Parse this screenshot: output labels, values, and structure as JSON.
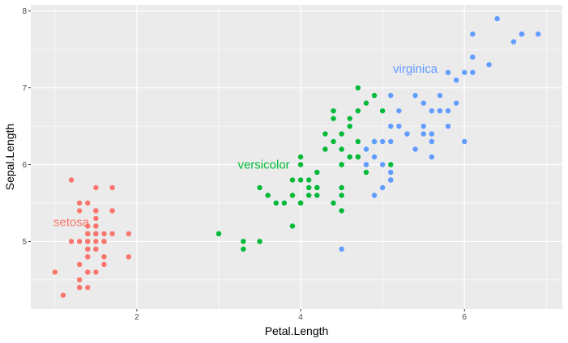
{
  "chart_data": {
    "type": "scatter",
    "title": "",
    "xlabel": "Petal.Length",
    "ylabel": "Sepal.Length",
    "xlim": [
      0.705,
      7.195
    ],
    "ylim": [
      4.12,
      8.08
    ],
    "x_ticks": [
      2,
      4,
      6
    ],
    "y_ticks": [
      5,
      6,
      7,
      8
    ],
    "grid": true,
    "legend": "none",
    "panel_background": "#ebebeb",
    "series": [
      {
        "name": "setosa",
        "color": "#f8766d",
        "label_position": {
          "x": 1.2,
          "y": 5.25
        },
        "points": [
          {
            "x": 1.4,
            "y": 5.1
          },
          {
            "x": 1.4,
            "y": 4.9
          },
          {
            "x": 1.3,
            "y": 4.7
          },
          {
            "x": 1.5,
            "y": 4.6
          },
          {
            "x": 1.4,
            "y": 5.0
          },
          {
            "x": 1.7,
            "y": 5.4
          },
          {
            "x": 1.4,
            "y": 4.6
          },
          {
            "x": 1.5,
            "y": 5.0
          },
          {
            "x": 1.4,
            "y": 4.4
          },
          {
            "x": 1.5,
            "y": 4.9
          },
          {
            "x": 1.5,
            "y": 5.4
          },
          {
            "x": 1.6,
            "y": 4.8
          },
          {
            "x": 1.4,
            "y": 4.8
          },
          {
            "x": 1.1,
            "y": 4.3
          },
          {
            "x": 1.2,
            "y": 5.8
          },
          {
            "x": 1.5,
            "y": 5.7
          },
          {
            "x": 1.3,
            "y": 5.4
          },
          {
            "x": 1.4,
            "y": 5.1
          },
          {
            "x": 1.7,
            "y": 5.7
          },
          {
            "x": 1.5,
            "y": 5.1
          },
          {
            "x": 1.7,
            "y": 5.4
          },
          {
            "x": 1.5,
            "y": 5.1
          },
          {
            "x": 1.0,
            "y": 4.6
          },
          {
            "x": 1.7,
            "y": 5.1
          },
          {
            "x": 1.9,
            "y": 4.8
          },
          {
            "x": 1.6,
            "y": 5.0
          },
          {
            "x": 1.6,
            "y": 5.0
          },
          {
            "x": 1.5,
            "y": 5.2
          },
          {
            "x": 1.4,
            "y": 5.2
          },
          {
            "x": 1.6,
            "y": 4.7
          },
          {
            "x": 1.6,
            "y": 4.8
          },
          {
            "x": 1.5,
            "y": 5.4
          },
          {
            "x": 1.5,
            "y": 5.2
          },
          {
            "x": 1.4,
            "y": 5.5
          },
          {
            "x": 1.5,
            "y": 4.9
          },
          {
            "x": 1.2,
            "y": 5.0
          },
          {
            "x": 1.3,
            "y": 5.5
          },
          {
            "x": 1.4,
            "y": 4.9
          },
          {
            "x": 1.3,
            "y": 4.4
          },
          {
            "x": 1.5,
            "y": 5.1
          },
          {
            "x": 1.3,
            "y": 5.0
          },
          {
            "x": 1.3,
            "y": 4.5
          },
          {
            "x": 1.3,
            "y": 4.4
          },
          {
            "x": 1.6,
            "y": 5.0
          },
          {
            "x": 1.9,
            "y": 5.1
          },
          {
            "x": 1.4,
            "y": 4.8
          },
          {
            "x": 1.6,
            "y": 5.1
          },
          {
            "x": 1.4,
            "y": 4.6
          },
          {
            "x": 1.5,
            "y": 5.3
          },
          {
            "x": 1.4,
            "y": 5.0
          }
        ]
      },
      {
        "name": "versicolor",
        "color": "#00ba38",
        "label_position": {
          "x": 3.55,
          "y": 6.0
        },
        "points": [
          {
            "x": 4.7,
            "y": 7.0
          },
          {
            "x": 4.5,
            "y": 6.4
          },
          {
            "x": 4.9,
            "y": 6.9
          },
          {
            "x": 4.0,
            "y": 5.5
          },
          {
            "x": 4.6,
            "y": 6.5
          },
          {
            "x": 4.5,
            "y": 5.7
          },
          {
            "x": 4.7,
            "y": 6.3
          },
          {
            "x": 3.3,
            "y": 4.9
          },
          {
            "x": 4.6,
            "y": 6.6
          },
          {
            "x": 3.9,
            "y": 5.2
          },
          {
            "x": 3.5,
            "y": 5.0
          },
          {
            "x": 4.2,
            "y": 5.9
          },
          {
            "x": 4.0,
            "y": 6.0
          },
          {
            "x": 4.7,
            "y": 6.1
          },
          {
            "x": 3.6,
            "y": 5.6
          },
          {
            "x": 4.4,
            "y": 6.7
          },
          {
            "x": 4.5,
            "y": 5.6
          },
          {
            "x": 4.1,
            "y": 5.8
          },
          {
            "x": 4.5,
            "y": 6.2
          },
          {
            "x": 3.9,
            "y": 5.6
          },
          {
            "x": 4.8,
            "y": 5.9
          },
          {
            "x": 4.0,
            "y": 6.1
          },
          {
            "x": 4.9,
            "y": 6.3
          },
          {
            "x": 4.7,
            "y": 6.1
          },
          {
            "x": 4.3,
            "y": 6.4
          },
          {
            "x": 4.4,
            "y": 6.6
          },
          {
            "x": 4.8,
            "y": 6.8
          },
          {
            "x": 5.0,
            "y": 6.7
          },
          {
            "x": 4.5,
            "y": 6.0
          },
          {
            "x": 3.5,
            "y": 5.7
          },
          {
            "x": 3.8,
            "y": 5.5
          },
          {
            "x": 3.7,
            "y": 5.5
          },
          {
            "x": 3.9,
            "y": 5.8
          },
          {
            "x": 5.1,
            "y": 6.0
          },
          {
            "x": 4.5,
            "y": 5.4
          },
          {
            "x": 4.5,
            "y": 6.0
          },
          {
            "x": 4.7,
            "y": 6.7
          },
          {
            "x": 4.4,
            "y": 6.3
          },
          {
            "x": 4.1,
            "y": 5.6
          },
          {
            "x": 4.0,
            "y": 5.5
          },
          {
            "x": 4.4,
            "y": 5.5
          },
          {
            "x": 4.6,
            "y": 6.1
          },
          {
            "x": 4.0,
            "y": 5.8
          },
          {
            "x": 3.3,
            "y": 5.0
          },
          {
            "x": 4.2,
            "y": 5.6
          },
          {
            "x": 4.2,
            "y": 5.7
          },
          {
            "x": 4.2,
            "y": 5.7
          },
          {
            "x": 4.3,
            "y": 6.2
          },
          {
            "x": 3.0,
            "y": 5.1
          },
          {
            "x": 4.1,
            "y": 5.7
          }
        ]
      },
      {
        "name": "virginica",
        "color": "#619cff",
        "label_position": {
          "x": 5.4,
          "y": 7.25
        },
        "points": [
          {
            "x": 6.0,
            "y": 6.3
          },
          {
            "x": 5.1,
            "y": 5.8
          },
          {
            "x": 5.9,
            "y": 7.1
          },
          {
            "x": 5.6,
            "y": 6.3
          },
          {
            "x": 5.8,
            "y": 6.5
          },
          {
            "x": 6.6,
            "y": 7.6
          },
          {
            "x": 4.5,
            "y": 4.9
          },
          {
            "x": 6.3,
            "y": 7.3
          },
          {
            "x": 5.8,
            "y": 6.7
          },
          {
            "x": 6.1,
            "y": 7.2
          },
          {
            "x": 5.1,
            "y": 6.5
          },
          {
            "x": 5.3,
            "y": 6.4
          },
          {
            "x": 5.5,
            "y": 6.8
          },
          {
            "x": 5.0,
            "y": 5.7
          },
          {
            "x": 5.1,
            "y": 5.8
          },
          {
            "x": 5.3,
            "y": 6.4
          },
          {
            "x": 5.5,
            "y": 6.5
          },
          {
            "x": 6.7,
            "y": 7.7
          },
          {
            "x": 6.9,
            "y": 7.7
          },
          {
            "x": 5.0,
            "y": 6.0
          },
          {
            "x": 5.7,
            "y": 6.9
          },
          {
            "x": 4.9,
            "y": 5.6
          },
          {
            "x": 6.7,
            "y": 7.7
          },
          {
            "x": 4.9,
            "y": 6.3
          },
          {
            "x": 5.7,
            "y": 6.7
          },
          {
            "x": 6.0,
            "y": 7.2
          },
          {
            "x": 4.8,
            "y": 6.2
          },
          {
            "x": 4.9,
            "y": 6.1
          },
          {
            "x": 5.6,
            "y": 6.4
          },
          {
            "x": 5.8,
            "y": 7.2
          },
          {
            "x": 6.1,
            "y": 7.4
          },
          {
            "x": 6.4,
            "y": 7.9
          },
          {
            "x": 5.6,
            "y": 6.4
          },
          {
            "x": 5.1,
            "y": 6.3
          },
          {
            "x": 5.6,
            "y": 6.1
          },
          {
            "x": 6.1,
            "y": 7.7
          },
          {
            "x": 5.6,
            "y": 6.3
          },
          {
            "x": 5.5,
            "y": 6.4
          },
          {
            "x": 4.8,
            "y": 6.0
          },
          {
            "x": 5.4,
            "y": 6.9
          },
          {
            "x": 5.6,
            "y": 6.7
          },
          {
            "x": 5.1,
            "y": 6.9
          },
          {
            "x": 5.1,
            "y": 5.8
          },
          {
            "x": 5.9,
            "y": 6.8
          },
          {
            "x": 5.7,
            "y": 6.7
          },
          {
            "x": 5.2,
            "y": 6.7
          },
          {
            "x": 5.0,
            "y": 6.3
          },
          {
            "x": 5.2,
            "y": 6.5
          },
          {
            "x": 5.4,
            "y": 6.2
          },
          {
            "x": 5.1,
            "y": 5.9
          }
        ]
      }
    ]
  }
}
